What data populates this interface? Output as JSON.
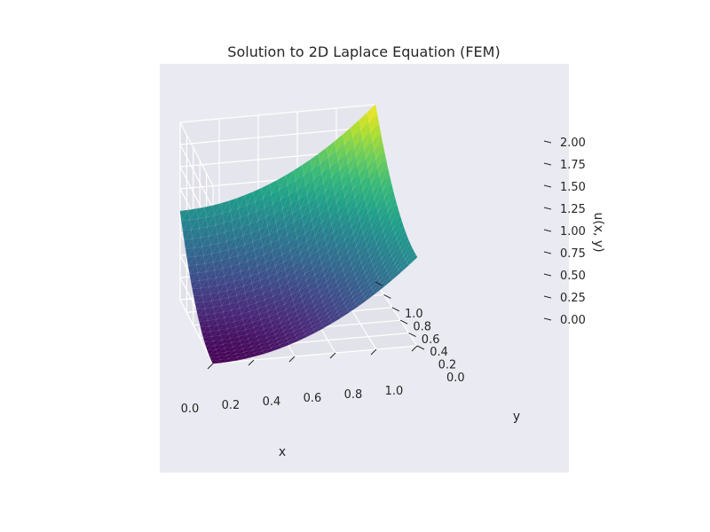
{
  "chart_data": {
    "type": "surface3d",
    "title": "Solution to 2D Laplace Equation (FEM)",
    "xlabel": "x",
    "ylabel": "y",
    "zlabel": "u(x, y)",
    "xlim": [
      0,
      1
    ],
    "ylim": [
      0,
      1
    ],
    "zlim": [
      0,
      2
    ],
    "xticks": [
      "0.0",
      "0.2",
      "0.4",
      "0.6",
      "0.8",
      "1.0"
    ],
    "yticks": [
      "0.0",
      "0.2",
      "0.4",
      "0.6",
      "0.8",
      "1.0"
    ],
    "zticks": [
      "0.00",
      "0.25",
      "0.50",
      "0.75",
      "1.00",
      "1.25",
      "1.50",
      "1.75",
      "2.00"
    ],
    "corner_values": [
      {
        "x": 0,
        "y": 0,
        "u": 0.0
      },
      {
        "x": 1,
        "y": 0,
        "u": 1.0
      },
      {
        "x": 0,
        "y": 1,
        "u": 1.0
      },
      {
        "x": 1,
        "y": 1,
        "u": 2.0
      }
    ],
    "colormap": "viridis",
    "grid": true,
    "style": "seaborn"
  }
}
